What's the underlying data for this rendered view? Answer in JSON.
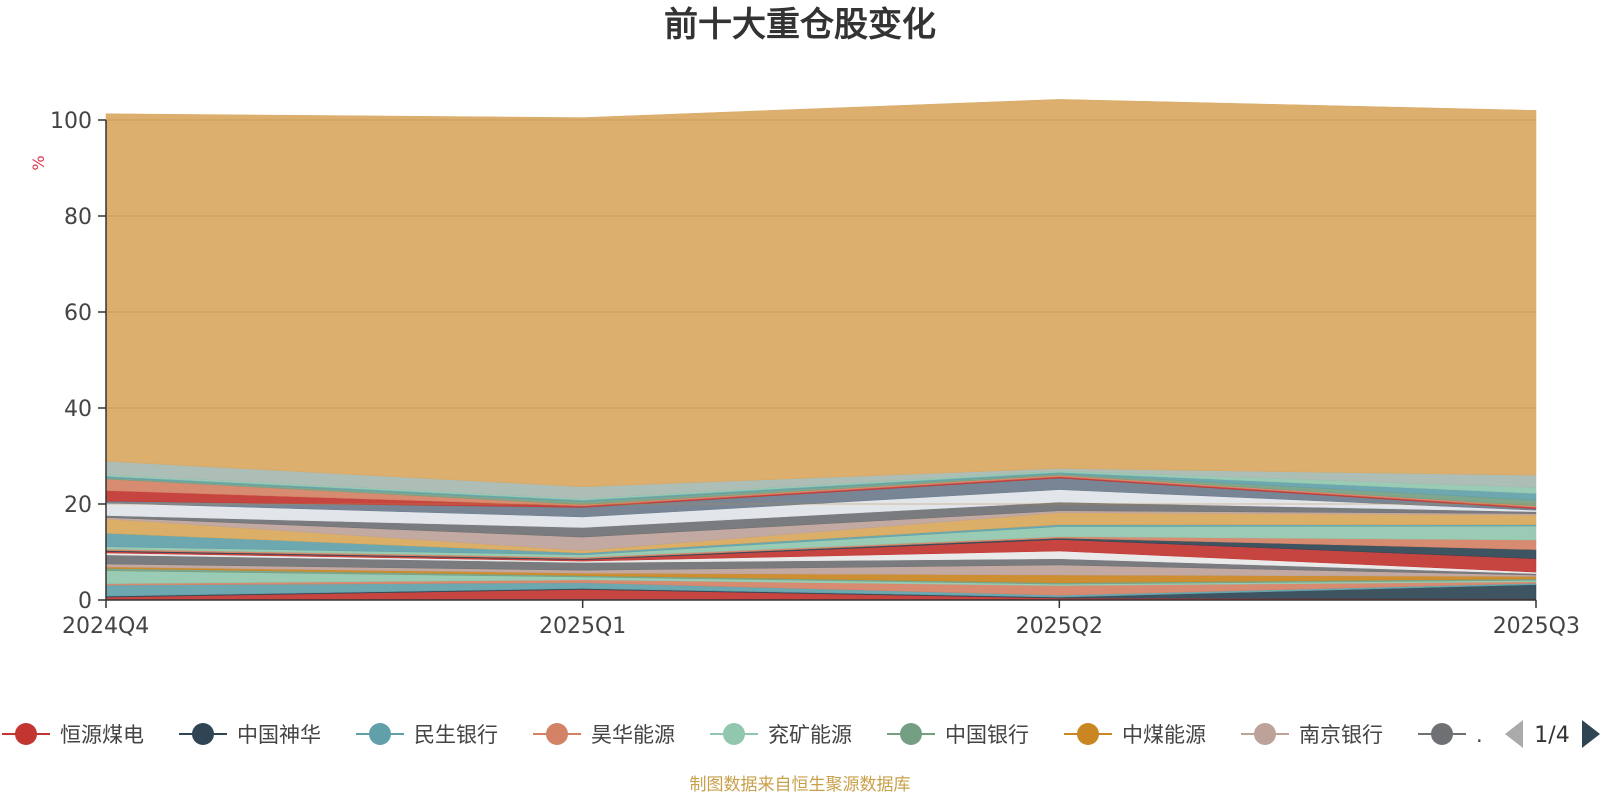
{
  "chart_data": {
    "type": "area",
    "stacked": true,
    "title": "前十大重仓股变化",
    "ylabel": "%",
    "categories": [
      "2024Q4",
      "2025Q1",
      "2025Q2",
      "2025Q3"
    ],
    "ylim": [
      0,
      100
    ],
    "yticks": [
      0,
      20,
      40,
      60,
      80,
      100
    ],
    "grid": true,
    "series": [
      {
        "name": "恒源煤电",
        "color": "#c23531",
        "values": [
          0.6,
          2.2,
          0.4,
          0.2
        ]
      },
      {
        "name": "中国神华",
        "color": "#2f4554",
        "values": [
          0.2,
          0.2,
          0.2,
          3.0
        ]
      },
      {
        "name": "民生银行",
        "color": "#61a0a8",
        "values": [
          2.3,
          1.2,
          0.4,
          0.3
        ]
      },
      {
        "name": "昊华能源",
        "color": "#d48265",
        "values": [
          0.3,
          0.6,
          2.0,
          0.3
        ]
      },
      {
        "name": "兖矿能源",
        "color": "#91c7ae",
        "values": [
          2.7,
          0.6,
          0.3,
          0.3
        ]
      },
      {
        "name": "中国银行",
        "color": "#749f83",
        "values": [
          0.5,
          0.3,
          0.3,
          0.3
        ]
      },
      {
        "name": "中煤能源",
        "color": "#ca8622",
        "values": [
          0.3,
          0.5,
          1.6,
          0.5
        ]
      },
      {
        "name": "南京银行",
        "color": "#bda29a",
        "values": [
          0.6,
          0.6,
          2.1,
          0.3
        ]
      },
      {
        "name": "",
        "color": "#6e7074",
        "values": [
          1.9,
          1.6,
          1.3,
          0.3
        ]
      },
      {
        "name": "",
        "color": "#e8e8e8",
        "values": [
          0.4,
          0.3,
          1.6,
          0.3
        ]
      },
      {
        "name": "",
        "color": "#c23531",
        "values": [
          0.3,
          0.3,
          2.4,
          2.8
        ]
      },
      {
        "name": "",
        "color": "#2f4554",
        "values": [
          0.2,
          0.2,
          0.3,
          1.9
        ]
      },
      {
        "name": "",
        "color": "#d48265",
        "values": [
          0.3,
          0.3,
          0.3,
          2.0
        ]
      },
      {
        "name": "",
        "color": "#91c7ae",
        "values": [
          0.5,
          0.5,
          2.1,
          2.9
        ]
      },
      {
        "name": "",
        "color": "#61a0a8",
        "values": [
          2.8,
          0.4,
          0.4,
          0.3
        ]
      },
      {
        "name": "",
        "color": "#d9a85b",
        "values": [
          3.0,
          0.5,
          2.5,
          2.0
        ]
      },
      {
        "name": "",
        "color": "#bda29a",
        "values": [
          0.3,
          2.8,
          0.4,
          0.3
        ]
      },
      {
        "name": "",
        "color": "#6e7074",
        "values": [
          0.4,
          2.0,
          1.8,
          0.4
        ]
      },
      {
        "name": "",
        "color": "#dfe3e8",
        "values": [
          2.6,
          2.2,
          2.6,
          0.3
        ]
      },
      {
        "name": "",
        "color": "#6b7b8c",
        "values": [
          0.4,
          2.0,
          2.4,
          0.3
        ]
      },
      {
        "name": "",
        "color": "#c23531",
        "values": [
          2.2,
          0.3,
          0.3,
          0.3
        ]
      },
      {
        "name": "",
        "color": "#d48265",
        "values": [
          2.4,
          0.3,
          0.3,
          0.3
        ]
      },
      {
        "name": "",
        "color": "#749f83",
        "values": [
          0.3,
          0.6,
          0.3,
          1.2
        ]
      },
      {
        "name": "",
        "color": "#61a0a8",
        "values": [
          0.3,
          0.3,
          0.3,
          1.4
        ]
      },
      {
        "name": "",
        "color": "#91c7ae",
        "values": [
          0.3,
          0.3,
          0.3,
          1.2
        ]
      },
      {
        "name": "",
        "color": "#a6b9b0",
        "values": [
          2.8,
          2.5,
          0.5,
          2.6
        ]
      },
      {
        "name": "",
        "color": "#d9a863",
        "values": [
          72.4,
          76.9,
          76.9,
          76.0
        ]
      }
    ]
  },
  "legend": {
    "items": [
      {
        "label": "恒源煤电",
        "color": "#c23531"
      },
      {
        "label": "中国神华",
        "color": "#2f4554"
      },
      {
        "label": "民生银行",
        "color": "#61a0a8"
      },
      {
        "label": "昊华能源",
        "color": "#d48265"
      },
      {
        "label": "兖矿能源",
        "color": "#91c7ae"
      },
      {
        "label": "中国银行",
        "color": "#749f83"
      },
      {
        "label": "中煤能源",
        "color": "#ca8622"
      },
      {
        "label": "南京银行",
        "color": "#bda29a"
      },
      {
        "label": ".",
        "color": "#6e7074"
      }
    ],
    "page_label": "1/4"
  },
  "source_note": "制图数据来自恒生聚源数据库"
}
